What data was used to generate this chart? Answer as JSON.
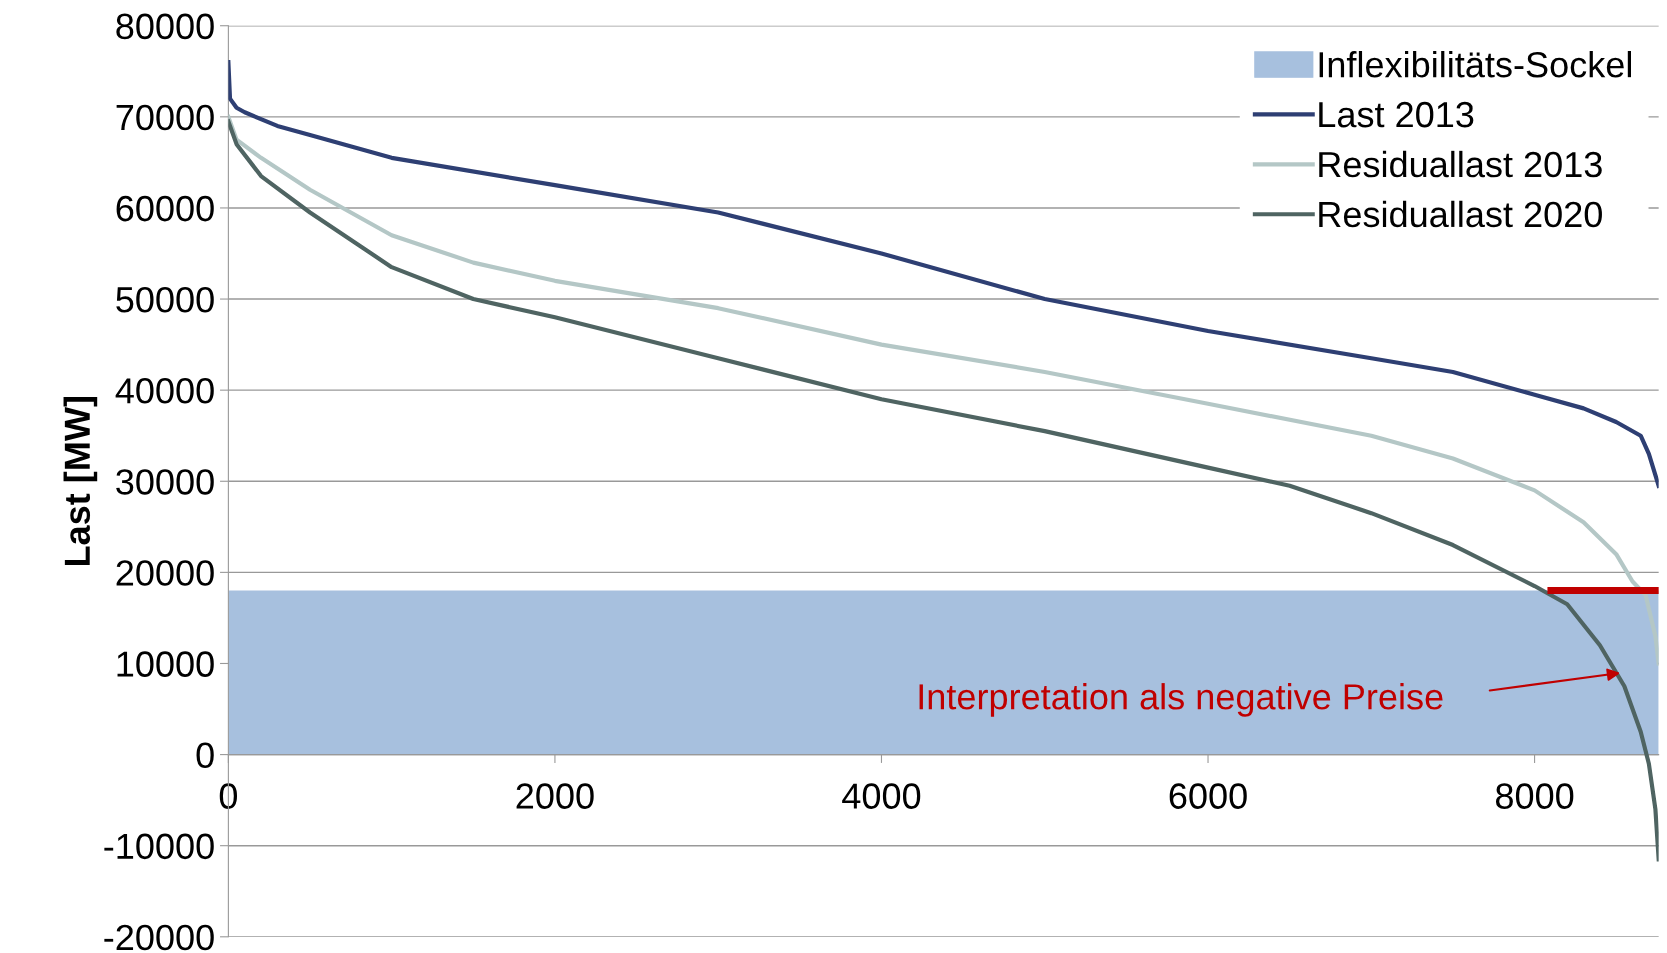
{
  "chart_data": {
    "type": "line",
    "ylabel": "Last [MW]",
    "xlim": [
      0,
      8760
    ],
    "ylim": [
      -20000,
      80000
    ],
    "xticks": [
      0,
      2000,
      4000,
      6000,
      8000
    ],
    "yticks": [
      -20000,
      -10000,
      0,
      10000,
      20000,
      30000,
      40000,
      50000,
      60000,
      70000,
      80000
    ],
    "grid": "y",
    "legend": "top right",
    "line_style": "solid",
    "marker": "none",
    "series": [
      {
        "name": "Inflexibilitäts-Sockel",
        "type": "area",
        "color": "#a7c0de",
        "x": [
          0,
          8760
        ],
        "values": [
          18000,
          18000
        ]
      },
      {
        "name": "Last 2013",
        "color": "#2e3f73",
        "x": [
          0,
          10,
          50,
          100,
          300,
          500,
          1000,
          2000,
          3000,
          4000,
          5000,
          6000,
          7000,
          7500,
          8000,
          8300,
          8500,
          8650,
          8700,
          8760
        ],
        "values": [
          76000,
          72000,
          71000,
          70500,
          69000,
          68000,
          65500,
          62500,
          59500,
          55000,
          50000,
          46500,
          43500,
          42000,
          39500,
          38000,
          36500,
          35000,
          33000,
          29500
        ]
      },
      {
        "name": "Residuallast 2013",
        "color": "#b4c7c6",
        "x": [
          0,
          50,
          200,
          500,
          1000,
          1500,
          2000,
          3000,
          4000,
          5000,
          6000,
          7000,
          7500,
          8000,
          8300,
          8500,
          8600,
          8680,
          8740,
          8760
        ],
        "values": [
          70000,
          67500,
          65500,
          62000,
          57000,
          54000,
          52000,
          49000,
          45000,
          42000,
          38500,
          35000,
          32500,
          29000,
          25500,
          22000,
          19000,
          17500,
          13000,
          10000
        ]
      },
      {
        "name": "Residuallast 2020",
        "color": "#4f6462",
        "x": [
          0,
          50,
          200,
          500,
          1000,
          1500,
          2000,
          3000,
          4000,
          5000,
          6000,
          6500,
          7000,
          7500,
          8000,
          8200,
          8400,
          8550,
          8650,
          8700,
          8740,
          8760
        ],
        "values": [
          69500,
          67000,
          63500,
          59500,
          53500,
          50000,
          48000,
          43500,
          39000,
          35500,
          31500,
          29500,
          26500,
          23000,
          18500,
          16500,
          12000,
          7500,
          2500,
          -1000,
          -6000,
          -11500
        ]
      },
      {
        "color": "#c00000",
        "x": [
          8100,
          8760
        ],
        "values": [
          18000,
          18000
        ]
      }
    ],
    "annotations": [
      "Interpretation als negative Preise"
    ]
  }
}
